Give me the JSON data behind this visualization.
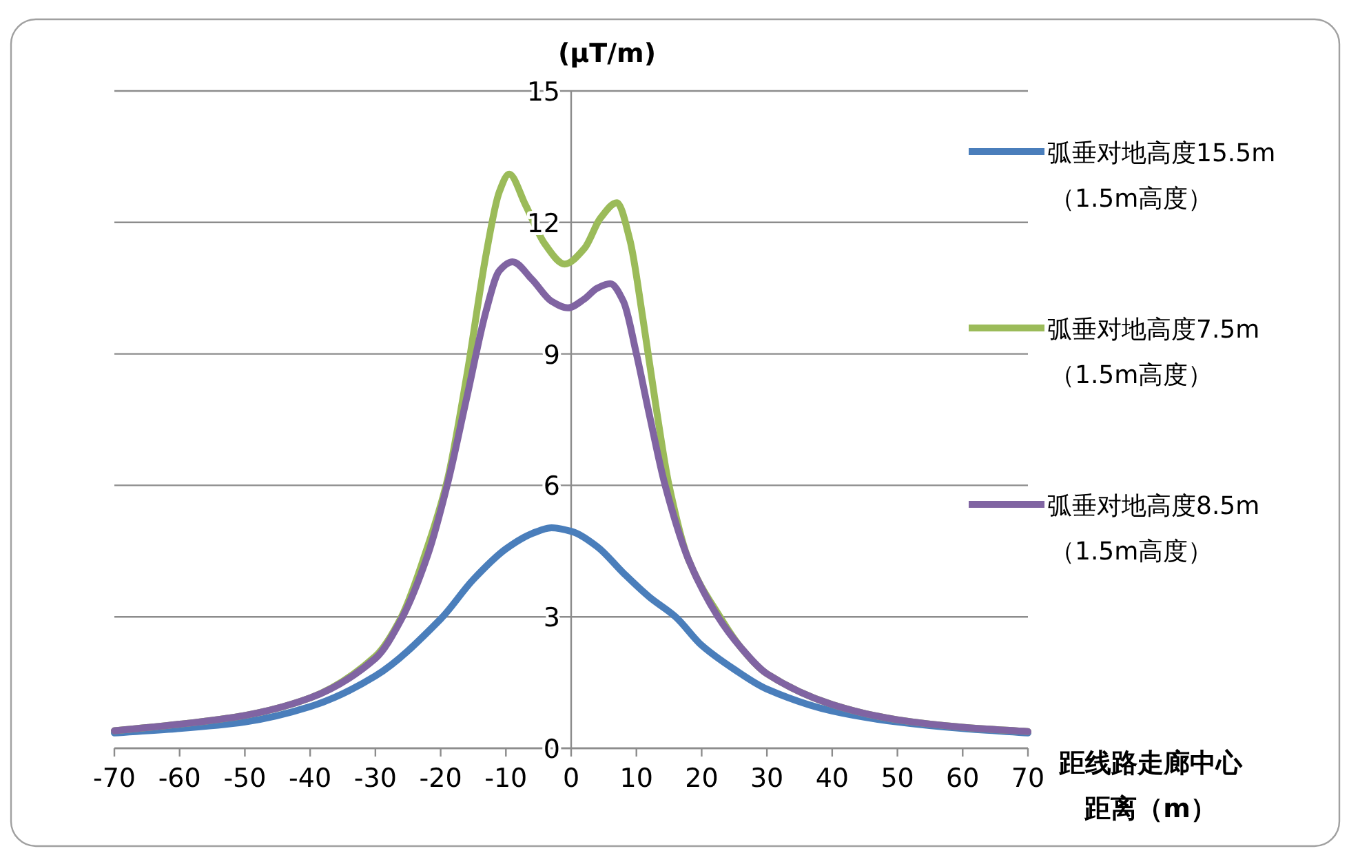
{
  "chart_data": {
    "type": "line",
    "ylabel": "(μT/m)",
    "xlabel": "距线路走廊中心距离（m）",
    "xlim": [
      -70,
      70
    ],
    "xticks": [
      -70,
      -60,
      -50,
      -40,
      -30,
      -20,
      -10,
      0,
      10,
      20,
      30,
      40,
      50,
      60,
      70
    ],
    "ylim": [
      0,
      15
    ],
    "yticks": [
      0,
      3,
      6,
      9,
      12,
      15
    ],
    "grid": "y",
    "legend": "right",
    "marker": "none",
    "line_style": "solid",
    "series": [
      {
        "name": "弧垂对地高度15.5m（1.5m高度）",
        "color": "#4a7ebb",
        "x": [
          -70,
          -60,
          -50,
          -40,
          -30,
          -20,
          -15,
          -10,
          -6,
          -3,
          0,
          4,
          8,
          12,
          16,
          20,
          25,
          30,
          40,
          50,
          60,
          70
        ],
        "values": [
          0.35,
          0.45,
          0.6,
          0.95,
          1.65,
          2.95,
          3.85,
          4.55,
          4.9,
          5.03,
          4.95,
          4.6,
          4.0,
          3.45,
          3.0,
          2.35,
          1.8,
          1.35,
          0.85,
          0.6,
          0.45,
          0.35
        ]
      },
      {
        "name": "弧垂对地高度7.5m（1.5m高度）",
        "color": "#9bbb59",
        "x": [
          -70,
          -60,
          -50,
          -40,
          -30,
          -26,
          -22,
          -19,
          -16,
          -13,
          -11,
          -9.5,
          -7,
          -4,
          -1,
          2,
          4.5,
          7,
          9,
          11,
          13,
          15,
          18,
          22.8,
          26,
          30,
          40,
          50,
          60,
          70
        ],
        "values": [
          0.4,
          0.55,
          0.75,
          1.15,
          2.1,
          3.0,
          4.6,
          6.1,
          8.5,
          11.3,
          12.7,
          13.1,
          12.4,
          11.5,
          11.05,
          11.4,
          12.1,
          12.45,
          11.6,
          9.8,
          7.8,
          6.0,
          4.3,
          3.0,
          2.3,
          1.7,
          1.0,
          0.65,
          0.48,
          0.38
        ]
      },
      {
        "name": "弧垂对地高度8.5m（1.5m高度）",
        "color": "#8064a2",
        "x": [
          -70,
          -60,
          -50,
          -40,
          -30,
          -26,
          -22,
          -19,
          -16,
          -13,
          -11,
          -9,
          -6,
          -3,
          -0.5,
          2,
          4,
          6,
          8,
          10,
          12,
          14.4,
          18,
          22.5,
          26,
          30,
          40,
          50,
          60,
          70
        ],
        "values": [
          0.4,
          0.55,
          0.75,
          1.15,
          2.05,
          2.95,
          4.4,
          6.0,
          8.0,
          10.0,
          10.9,
          11.1,
          10.7,
          10.2,
          10.05,
          10.25,
          10.5,
          10.6,
          10.2,
          9.0,
          7.6,
          6.0,
          4.3,
          3.0,
          2.3,
          1.7,
          1.0,
          0.65,
          0.48,
          0.38
        ]
      }
    ]
  }
}
